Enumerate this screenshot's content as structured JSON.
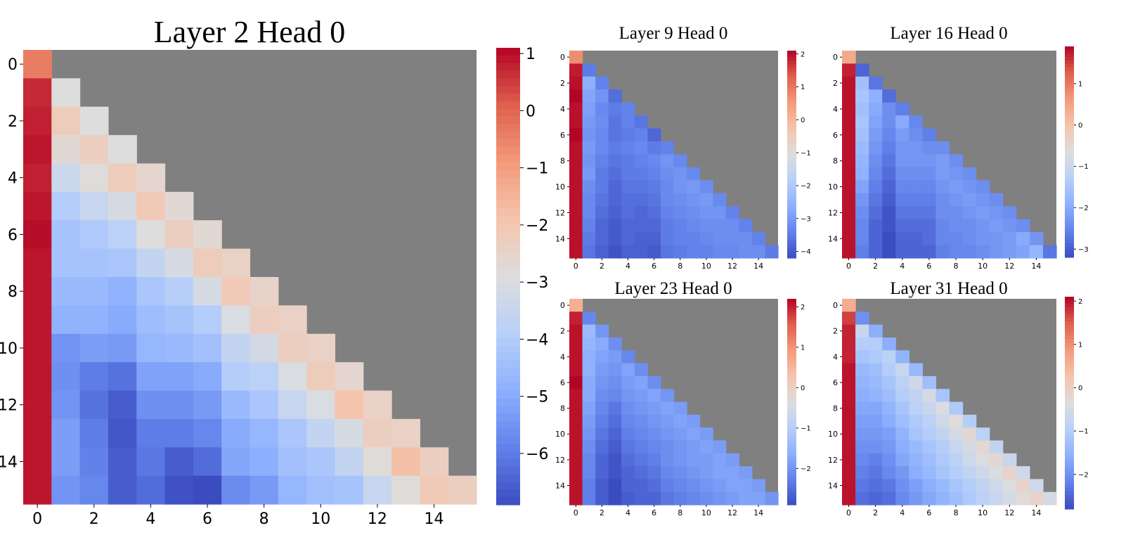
{
  "chart_data": [
    {
      "type": "heatmap",
      "title": "Layer 2 Head 0",
      "mask_color": "#808080",
      "colormap": "coolwarm",
      "clim": [
        -6.9,
        1.1
      ],
      "colorbar_ticks": [
        1,
        0,
        -1,
        -2,
        -3,
        -4,
        -5,
        -6
      ],
      "x_ticks": [
        0,
        2,
        4,
        6,
        8,
        10,
        12,
        14
      ],
      "y_ticks": [
        0,
        2,
        4,
        6,
        8,
        10,
        12,
        14
      ],
      "values": [
        [
          -0.4
        ],
        [
          0.7,
          -2.9
        ],
        [
          0.8,
          -2.2,
          -2.9
        ],
        [
          0.9,
          -2.7,
          -2.3,
          -2.9
        ],
        [
          0.8,
          -3.4,
          -2.8,
          -2.2,
          -2.6
        ],
        [
          0.9,
          -4.0,
          -3.5,
          -3.1,
          -2.1,
          -2.7
        ],
        [
          1.0,
          -4.3,
          -4.1,
          -3.8,
          -2.9,
          -2.3,
          -2.7
        ],
        [
          0.9,
          -4.3,
          -4.3,
          -4.2,
          -3.6,
          -3.1,
          -2.2,
          -2.4
        ],
        [
          0.9,
          -4.6,
          -4.6,
          -4.8,
          -4.2,
          -3.9,
          -3.1,
          -2.1,
          -2.5
        ],
        [
          0.9,
          -4.8,
          -4.8,
          -5.0,
          -4.5,
          -4.3,
          -4.0,
          -3.0,
          -2.3,
          -2.4
        ],
        [
          0.9,
          -5.5,
          -5.3,
          -5.4,
          -4.7,
          -4.6,
          -4.4,
          -3.6,
          -3.2,
          -2.3,
          -2.4
        ],
        [
          0.9,
          -5.6,
          -6.0,
          -6.2,
          -5.2,
          -5.2,
          -5.0,
          -4.0,
          -3.8,
          -3.0,
          -2.2,
          -2.6
        ],
        [
          0.9,
          -5.5,
          -6.2,
          -6.6,
          -5.6,
          -5.6,
          -5.4,
          -4.6,
          -4.2,
          -3.5,
          -3.0,
          -1.9,
          -2.4
        ],
        [
          0.9,
          -5.3,
          -6.0,
          -6.7,
          -6.0,
          -6.0,
          -5.8,
          -5.0,
          -4.7,
          -4.2,
          -3.6,
          -3.1,
          -2.3,
          -2.4
        ],
        [
          0.9,
          -5.3,
          -5.9,
          -6.6,
          -6.1,
          -6.6,
          -6.3,
          -5.1,
          -4.9,
          -4.4,
          -4.2,
          -3.6,
          -2.8,
          -1.8,
          -2.3
        ],
        [
          0.9,
          -5.5,
          -5.8,
          -6.6,
          -6.3,
          -6.8,
          -6.9,
          -5.7,
          -5.4,
          -4.7,
          -4.4,
          -4.3,
          -3.5,
          -2.8,
          -2.1,
          -2.3
        ]
      ]
    },
    {
      "type": "heatmap",
      "title": "Layer 9 Head 0",
      "mask_color": "#808080",
      "colormap": "coolwarm",
      "clim": [
        -4.2,
        2.1
      ],
      "colorbar_ticks": [
        2,
        1,
        0,
        -1,
        -2,
        -3,
        -4
      ],
      "x_ticks": [
        0,
        2,
        4,
        6,
        8,
        10,
        12,
        14
      ],
      "y_ticks": [
        0,
        2,
        4,
        6,
        8,
        10,
        12,
        14
      ],
      "values": [
        [
          0.7
        ],
        [
          1.9,
          -3.5
        ],
        [
          2.0,
          -2.6,
          -3.4
        ],
        [
          2.1,
          -2.8,
          -3.1,
          -3.7
        ],
        [
          2.0,
          -2.9,
          -3.3,
          -3.5,
          -3.4
        ],
        [
          2.0,
          -3.0,
          -3.2,
          -3.6,
          -3.4,
          -3.6
        ],
        [
          2.1,
          -3.1,
          -3.3,
          -3.6,
          -3.5,
          -3.4,
          -3.8
        ],
        [
          2.0,
          -3.0,
          -3.3,
          -3.5,
          -3.4,
          -3.3,
          -3.5,
          -3.4
        ],
        [
          2.0,
          -3.1,
          -3.4,
          -3.6,
          -3.5,
          -3.4,
          -3.3,
          -3.1,
          -3.3
        ],
        [
          2.0,
          -3.0,
          -3.5,
          -3.7,
          -3.5,
          -3.5,
          -3.4,
          -3.2,
          -3.1,
          -3.3
        ],
        [
          2.0,
          -3.2,
          -3.5,
          -3.8,
          -3.6,
          -3.6,
          -3.5,
          -3.3,
          -3.1,
          -3.0,
          -3.2
        ],
        [
          2.0,
          -3.3,
          -3.6,
          -3.8,
          -3.7,
          -3.7,
          -3.6,
          -3.3,
          -3.2,
          -3.1,
          -3.0,
          -3.3
        ],
        [
          2.0,
          -3.3,
          -3.7,
          -3.9,
          -3.7,
          -3.8,
          -3.7,
          -3.4,
          -3.3,
          -3.2,
          -3.1,
          -3.1,
          -3.4
        ],
        [
          2.0,
          -3.4,
          -3.8,
          -4.0,
          -3.8,
          -3.8,
          -3.8,
          -3.5,
          -3.4,
          -3.3,
          -3.2,
          -3.2,
          -3.2,
          -3.4
        ],
        [
          2.0,
          -3.5,
          -3.8,
          -4.0,
          -3.8,
          -3.9,
          -3.9,
          -3.5,
          -3.4,
          -3.4,
          -3.3,
          -3.2,
          -3.2,
          -3.2,
          -3.4
        ],
        [
          2.0,
          -3.6,
          -3.9,
          -4.1,
          -3.9,
          -3.9,
          -4.0,
          -3.6,
          -3.5,
          -3.4,
          -3.4,
          -3.3,
          -3.3,
          -3.2,
          -3.2,
          -3.5
        ]
      ]
    },
    {
      "type": "heatmap",
      "title": "Layer 16 Head 0",
      "mask_color": "#808080",
      "colormap": "coolwarm",
      "clim": [
        -3.2,
        1.9
      ],
      "colorbar_ticks": [
        1,
        0,
        -1,
        -2,
        -3
      ],
      "x_ticks": [
        0,
        2,
        4,
        6,
        8,
        10,
        12,
        14
      ],
      "y_ticks": [
        0,
        2,
        4,
        6,
        8,
        10,
        12,
        14
      ],
      "values": [
        [
          0.4
        ],
        [
          1.7,
          -2.9
        ],
        [
          1.8,
          -1.6,
          -2.7
        ],
        [
          1.8,
          -1.5,
          -1.9,
          -2.8
        ],
        [
          1.8,
          -1.6,
          -2.0,
          -2.4,
          -2.6
        ],
        [
          1.8,
          -1.5,
          -2.1,
          -2.4,
          -2.0,
          -2.5
        ],
        [
          1.8,
          -1.6,
          -2.2,
          -2.5,
          -2.2,
          -2.4,
          -2.6
        ],
        [
          1.8,
          -1.7,
          -2.3,
          -2.6,
          -2.3,
          -2.3,
          -2.4,
          -2.4
        ],
        [
          1.8,
          -1.8,
          -2.4,
          -2.7,
          -2.3,
          -2.3,
          -2.3,
          -2.2,
          -2.4
        ],
        [
          1.8,
          -1.9,
          -2.5,
          -2.8,
          -2.4,
          -2.4,
          -2.4,
          -2.2,
          -2.3,
          -2.4
        ],
        [
          1.8,
          -2.1,
          -2.6,
          -2.9,
          -2.5,
          -2.5,
          -2.5,
          -2.3,
          -2.2,
          -2.3,
          -2.4
        ],
        [
          1.8,
          -2.3,
          -2.7,
          -3.0,
          -2.6,
          -2.6,
          -2.6,
          -2.4,
          -2.3,
          -2.2,
          -2.3,
          -2.4
        ],
        [
          1.8,
          -2.4,
          -2.8,
          -3.1,
          -2.7,
          -2.7,
          -2.7,
          -2.4,
          -2.4,
          -2.3,
          -2.2,
          -2.3,
          -2.4
        ],
        [
          1.8,
          -2.5,
          -2.9,
          -3.1,
          -2.8,
          -2.8,
          -2.8,
          -2.5,
          -2.4,
          -2.4,
          -2.3,
          -2.2,
          -2.3,
          -2.4
        ],
        [
          1.8,
          -2.5,
          -2.9,
          -3.2,
          -2.9,
          -2.9,
          -2.8,
          -2.5,
          -2.5,
          -2.4,
          -2.3,
          -2.3,
          -2.2,
          -2.0,
          -2.3
        ],
        [
          1.8,
          -2.6,
          -2.9,
          -3.2,
          -2.9,
          -2.9,
          -2.9,
          -2.6,
          -2.5,
          -2.5,
          -2.4,
          -2.3,
          -2.2,
          -2.1,
          -1.8,
          -2.7
        ]
      ]
    },
    {
      "type": "heatmap",
      "title": "Layer 23 Head 0",
      "mask_color": "#808080",
      "colormap": "coolwarm",
      "clim": [
        -2.9,
        2.2
      ],
      "colorbar_ticks": [
        2,
        1,
        0,
        -1,
        -2
      ],
      "x_ticks": [
        0,
        2,
        4,
        6,
        8,
        10,
        12,
        14
      ],
      "y_ticks": [
        0,
        2,
        4,
        6,
        8,
        10,
        12,
        14
      ],
      "values": [
        [
          0.6
        ],
        [
          2.0,
          -2.2
        ],
        [
          2.1,
          -1.4,
          -2.0
        ],
        [
          2.1,
          -1.5,
          -1.7,
          -2.1
        ],
        [
          2.1,
          -1.6,
          -1.8,
          -1.9,
          -2.2
        ],
        [
          2.1,
          -1.6,
          -1.9,
          -2.0,
          -1.8,
          -2.1
        ],
        [
          2.2,
          -1.7,
          -2.0,
          -2.1,
          -1.9,
          -1.8,
          -2.1
        ],
        [
          2.1,
          -1.7,
          -2.1,
          -2.2,
          -2.0,
          -1.9,
          -1.8,
          -2.0
        ],
        [
          2.1,
          -1.8,
          -2.2,
          -2.4,
          -2.1,
          -2.0,
          -1.9,
          -1.8,
          -1.9
        ],
        [
          2.1,
          -1.9,
          -2.3,
          -2.5,
          -2.2,
          -2.1,
          -2.0,
          -1.9,
          -1.8,
          -1.9
        ],
        [
          2.1,
          -2.0,
          -2.4,
          -2.6,
          -2.3,
          -2.2,
          -2.1,
          -2.0,
          -1.9,
          -1.8,
          -1.9
        ],
        [
          2.1,
          -2.1,
          -2.5,
          -2.7,
          -2.4,
          -2.3,
          -2.2,
          -2.1,
          -2.0,
          -1.9,
          -1.8,
          -1.9
        ],
        [
          2.1,
          -2.2,
          -2.6,
          -2.8,
          -2.5,
          -2.4,
          -2.3,
          -2.1,
          -2.0,
          -1.9,
          -1.9,
          -1.8,
          -1.9
        ],
        [
          2.1,
          -2.2,
          -2.6,
          -2.8,
          -2.6,
          -2.5,
          -2.4,
          -2.2,
          -2.1,
          -2.0,
          -1.9,
          -1.8,
          -1.8,
          -1.9
        ],
        [
          2.1,
          -2.3,
          -2.7,
          -2.9,
          -2.6,
          -2.6,
          -2.5,
          -2.3,
          -2.2,
          -2.1,
          -2.0,
          -1.9,
          -1.8,
          -1.8,
          -1.9
        ],
        [
          2.1,
          -2.3,
          -2.7,
          -2.9,
          -2.7,
          -2.6,
          -2.6,
          -2.4,
          -2.3,
          -2.2,
          -2.1,
          -2.0,
          -1.9,
          -1.8,
          -1.8,
          -2.0
        ]
      ]
    },
    {
      "type": "heatmap",
      "title": "Layer 31 Head 0",
      "mask_color": "#808080",
      "colormap": "coolwarm",
      "clim": [
        -2.8,
        2.1
      ],
      "colorbar_ticks": [
        2,
        1,
        0,
        -1,
        -2
      ],
      "x_ticks": [
        0,
        2,
        4,
        6,
        8,
        10,
        12,
        14
      ],
      "y_ticks": [
        0,
        2,
        4,
        6,
        8,
        10,
        12,
        14
      ],
      "values": [
        [
          0.6
        ],
        [
          1.7,
          -2.0
        ],
        [
          1.9,
          -0.7,
          -1.6
        ],
        [
          1.9,
          -1.0,
          -1.0,
          -1.6
        ],
        [
          1.9,
          -1.2,
          -1.1,
          -0.9,
          -1.5
        ],
        [
          2.0,
          -1.4,
          -1.3,
          -1.0,
          -0.7,
          -1.4
        ],
        [
          2.0,
          -1.5,
          -1.4,
          -1.2,
          -0.9,
          -0.6,
          -1.3
        ],
        [
          2.0,
          -1.6,
          -1.5,
          -1.3,
          -1.0,
          -0.8,
          -0.5,
          -1.2
        ],
        [
          2.0,
          -1.7,
          -1.7,
          -1.5,
          -1.2,
          -0.9,
          -0.7,
          -0.4,
          -1.1
        ],
        [
          2.0,
          -1.8,
          -1.8,
          -1.6,
          -1.3,
          -1.1,
          -0.9,
          -0.6,
          -0.3,
          -1.0
        ],
        [
          2.0,
          -1.9,
          -1.9,
          -1.8,
          -1.5,
          -1.2,
          -1.0,
          -0.8,
          -0.5,
          -0.2,
          -0.9
        ],
        [
          2.0,
          -2.0,
          -2.0,
          -1.9,
          -1.6,
          -1.4,
          -1.2,
          -1.0,
          -0.7,
          -0.5,
          -0.2,
          -0.8
        ],
        [
          2.0,
          -2.1,
          -2.2,
          -2.0,
          -1.7,
          -1.5,
          -1.3,
          -1.1,
          -0.9,
          -0.6,
          -0.4,
          -0.2,
          -0.7
        ],
        [
          2.0,
          -2.2,
          -2.3,
          -2.1,
          -1.9,
          -1.6,
          -1.4,
          -1.2,
          -1.0,
          -0.8,
          -0.6,
          -0.4,
          -0.1,
          -0.6
        ],
        [
          2.0,
          -2.3,
          -2.4,
          -2.3,
          -2.0,
          -1.8,
          -1.6,
          -1.4,
          -1.2,
          -1.0,
          -0.8,
          -0.6,
          -0.4,
          -0.1,
          -0.6
        ],
        [
          2.0,
          -2.4,
          -2.5,
          -2.4,
          -2.1,
          -1.9,
          -1.7,
          -1.5,
          -1.3,
          -1.1,
          -0.9,
          -0.7,
          -0.5,
          -0.3,
          -0.1,
          -0.5
        ]
      ]
    }
  ]
}
